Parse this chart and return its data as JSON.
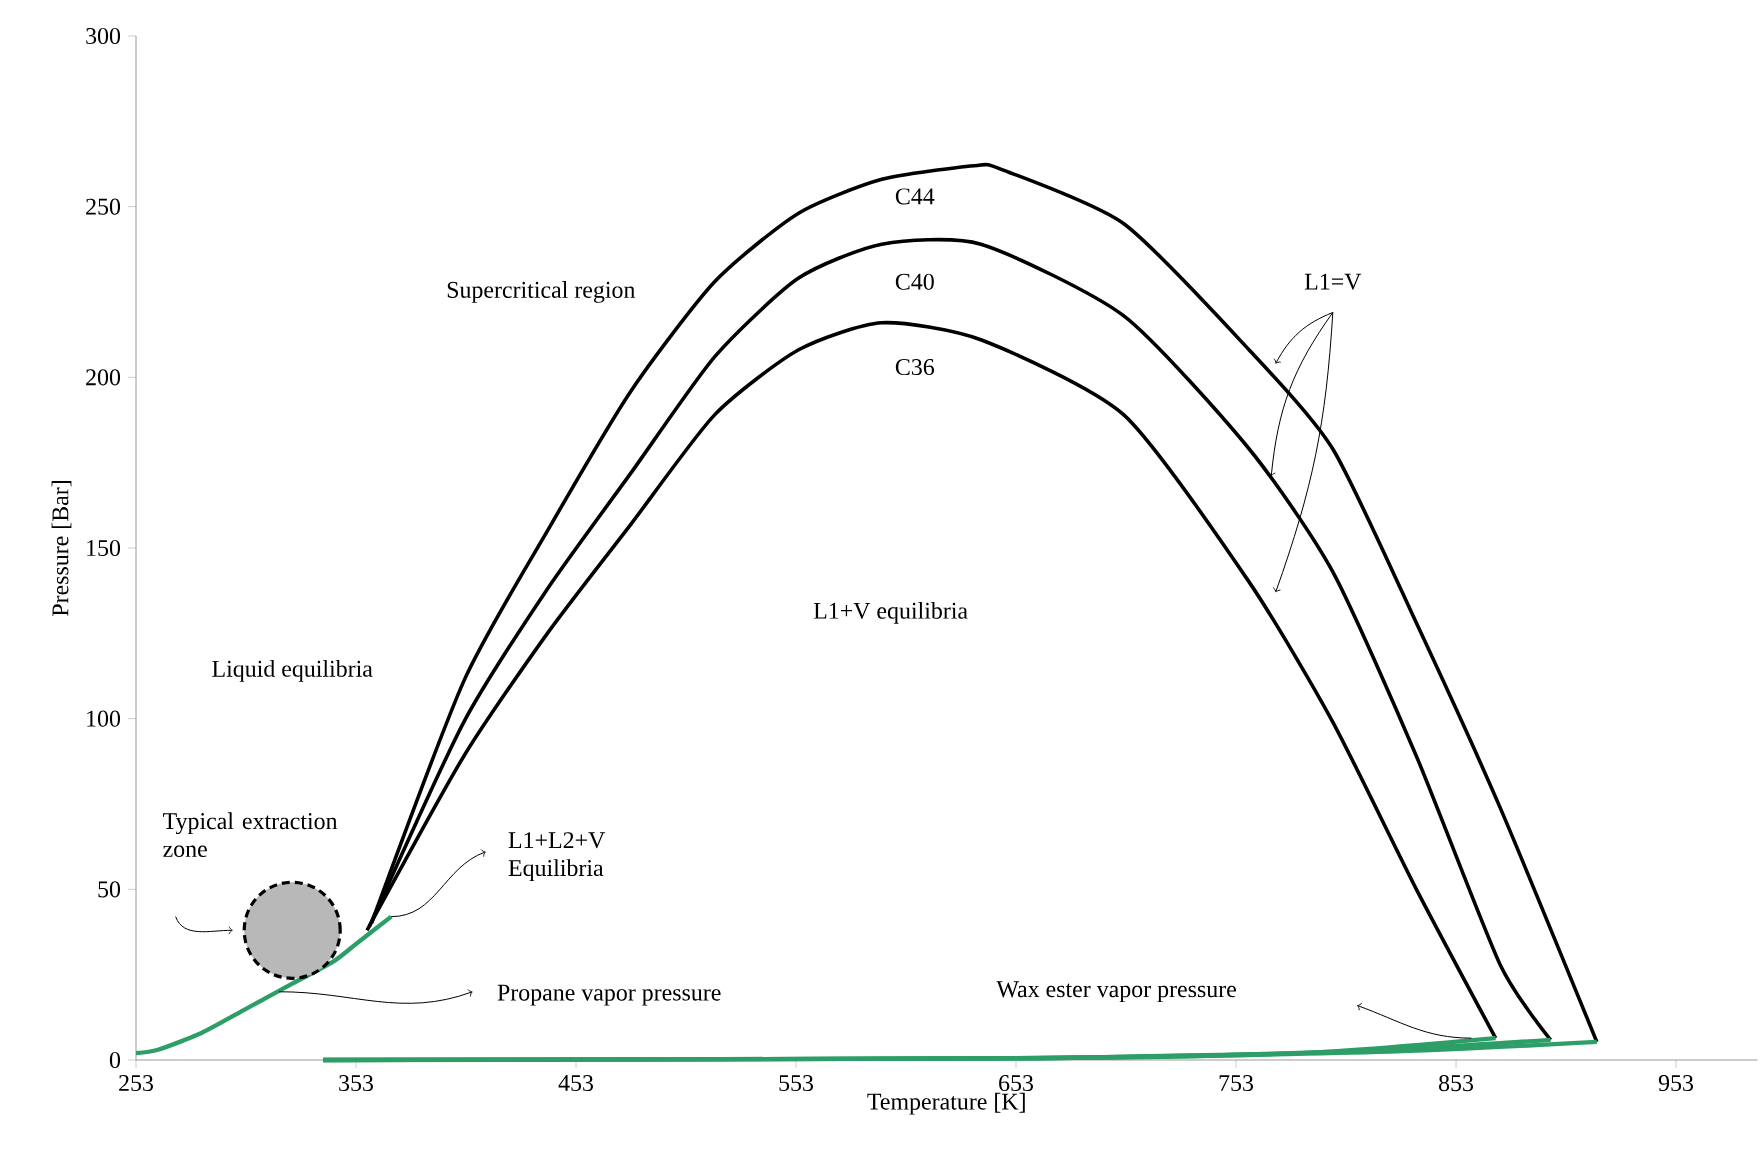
{
  "chart_data": {
    "type": "line",
    "xlabel": "Temperature [K]",
    "ylabel": "Pressure [Bar]",
    "xlim": [
      253,
      990
    ],
    "ylim": [
      0,
      300
    ],
    "xticks": [
      253,
      353,
      453,
      553,
      653,
      753,
      853,
      953
    ],
    "yticks": [
      0,
      50,
      100,
      150,
      200,
      250,
      300
    ],
    "series": [
      {
        "name": "C44",
        "color": "#000000",
        "x": [
          360,
          402,
          440,
          478,
          516,
          554,
          592,
          634,
          646,
          702,
          759,
          797,
          835,
          873,
          917
        ],
        "values": [
          40,
          111,
          155,
          196,
          228,
          248,
          258,
          262,
          261,
          245,
          208,
          179,
          128,
          74,
          5.3
        ]
      },
      {
        "name": "C40",
        "color": "#000000",
        "x": [
          359,
          402,
          440,
          478,
          516,
          554,
          592,
          637,
          702,
          759,
          797,
          835,
          873,
          896
        ],
        "values": [
          39,
          99,
          138,
          172,
          206,
          229,
          239,
          239,
          218,
          179,
          143,
          89,
          28,
          5.9
        ]
      },
      {
        "name": "C36",
        "color": "#000000",
        "x": [
          358,
          402,
          440,
          478,
          516,
          554,
          592,
          637,
          702,
          759,
          797,
          835,
          871
        ],
        "values": [
          38,
          89,
          125,
          157,
          189,
          208,
          216,
          211,
          189,
          140,
          99,
          50,
          6.4
        ]
      },
      {
        "color": "#2e9e68",
        "x": [
          253,
          263,
          283,
          303,
          323,
          343,
          353,
          369
        ],
        "values": [
          2,
          3,
          8,
          15,
          22,
          29,
          34,
          42
        ]
      },
      {
        "color": "#2e9e68",
        "x": [
          338,
          653,
          783,
          871
        ],
        "values": [
          0,
          0.5,
          2,
          6.4
        ]
      },
      {
        "color": "#2e9e68",
        "x": [
          338,
          653,
          803,
          896
        ],
        "values": [
          0,
          0.5,
          2.5,
          5.9
        ]
      },
      {
        "color": "#2e9e68",
        "x": [
          338,
          653,
          823,
          917
        ],
        "values": [
          0,
          0.5,
          2.5,
          5.3
        ]
      }
    ],
    "annotations": [
      "Supercritical region",
      {
        "text": "L1=V",
        "x": 769,
        "y": 171
      },
      "L1+V equilibria",
      "Liquid equilibria",
      "Typical extraction zone",
      {
        "text": "L1+L2+V Equilibria",
        "x": 369,
        "y": 42
      },
      {
        "text": "Propane vapor pressure",
        "x": 318,
        "y": 20
      },
      "Wax ester vapor pressure"
    ]
  }
}
